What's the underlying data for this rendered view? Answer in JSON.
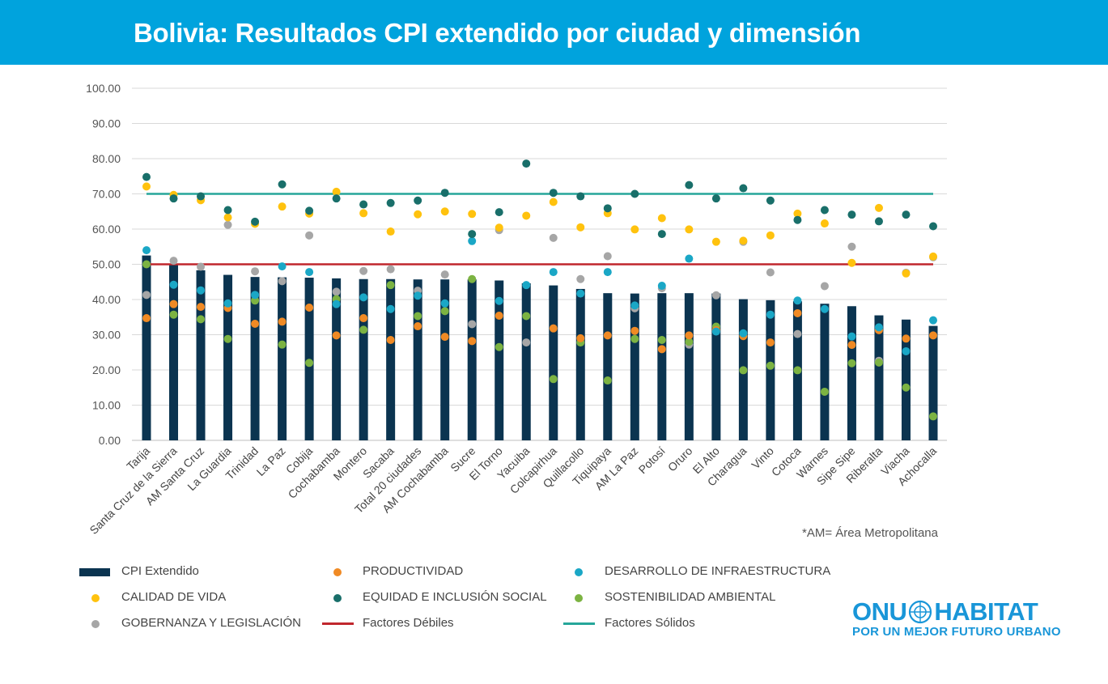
{
  "title": "Bolivia: Resultados CPI extendido por ciudad y dimensión",
  "note": "*AM= Área Metropolitana",
  "logo": {
    "main_left": "ONU",
    "main_right": "HABITAT",
    "tagline": "POR UN MEJOR FUTURO URBANO"
  },
  "colors": {
    "header": "#00a3dd",
    "bar": "#0b3450",
    "productividad": "#f08a24",
    "infraestructura": "#1aa7c6",
    "calidad": "#ffc20e",
    "equidad": "#196f6a",
    "sostenibilidad": "#7cb342",
    "gobernanza": "#a6a6a6",
    "debiles": "#c0272d",
    "solidos": "#26a69a"
  },
  "legend": {
    "cpi": "CPI Extendido",
    "productividad": "PRODUCTIVIDAD",
    "infraestructura": "DESARROLLO DE INFRAESTRUCTURA",
    "calidad": "CALIDAD DE VIDA",
    "equidad": "EQUIDAD E INCLUSIÓN SOCIAL",
    "sostenibilidad": "SOSTENIBILIDAD AMBIENTAL",
    "gobernanza": "GOBERNANZA Y LEGISLACIÓN",
    "debiles": "Factores Débiles",
    "solidos": "Factores Sólidos"
  },
  "chart_data": {
    "type": "bar",
    "ylim": [
      0,
      100
    ],
    "yticks": [
      "0.00",
      "10.00",
      "20.00",
      "30.00",
      "40.00",
      "50.00",
      "60.00",
      "70.00",
      "80.00",
      "90.00",
      "100.00"
    ],
    "grid": true,
    "categories": [
      "Tarija",
      "Santa Cruz de la Sierra",
      "AM Santa Cruz",
      "La Guardia",
      "Trinidad",
      "La Paz",
      "Cobija",
      "Cochabamba",
      "Montero",
      "Sacaba",
      "Total 20 ciudades",
      "AM Cochabamba",
      "Sucre",
      "El Torno",
      "Yacuiba",
      "Colcapirhua",
      "Quillacollo",
      "Tiquipaya",
      "AM La Paz",
      "Potosí",
      "Oruro",
      "El Alto",
      "Charagua",
      "Vinto",
      "Cotoca",
      "Warnes",
      "Sipe Sipe",
      "Riberalta",
      "Viacha",
      "Achocalla"
    ],
    "bars": {
      "name": "CPI Extendido",
      "values": [
        52.5,
        50.0,
        48.3,
        47.0,
        46.4,
        46.3,
        46.2,
        46.0,
        45.8,
        45.8,
        45.7,
        45.7,
        45.7,
        45.4,
        44.6,
        44.0,
        43.0,
        41.8,
        41.7,
        41.8,
        41.8,
        41.7,
        40.1,
        39.8,
        39.5,
        38.8,
        38.1,
        35.5,
        34.3,
        32.5
      ]
    },
    "series": [
      {
        "name": "PRODUCTIVIDAD",
        "color_key": "productividad",
        "values": [
          34.7,
          38.7,
          37.9,
          37.6,
          33.1,
          33.7,
          37.7,
          29.8,
          34.7,
          28.5,
          32.4,
          29.4,
          28.2,
          35.4,
          null,
          31.8,
          29.0,
          29.8,
          31.1,
          25.9,
          29.8,
          31.3,
          29.6,
          27.8,
          36.1,
          null,
          27.1,
          31.3,
          28.9,
          29.8
        ]
      },
      {
        "name": "DESARROLLO DE INFRAESTRUCTURA",
        "color_key": "infraestructura",
        "values": [
          54.0,
          44.2,
          42.6,
          38.9,
          41.3,
          49.4,
          47.8,
          38.7,
          40.6,
          37.3,
          41.1,
          38.9,
          56.6,
          39.6,
          44.1,
          47.8,
          41.7,
          47.8,
          38.3,
          43.9,
          51.6,
          30.9,
          30.4,
          35.7,
          39.7,
          37.3,
          29.5,
          32.1,
          25.3,
          34.1
        ]
      },
      {
        "name": "CALIDAD DE VIDA",
        "color_key": "calidad",
        "values": [
          72.1,
          69.7,
          68.2,
          63.3,
          61.5,
          66.4,
          64.4,
          70.6,
          64.5,
          59.3,
          64.2,
          65.0,
          64.3,
          60.4,
          63.8,
          67.7,
          60.5,
          64.5,
          59.9,
          63.1,
          59.9,
          56.4,
          56.7,
          58.2,
          64.4,
          61.6,
          50.4,
          66.0,
          47.4,
          52.2
        ]
      },
      {
        "name": "EQUIDAD E INCLUSIÓN SOCIAL",
        "color_key": "equidad",
        "values": [
          74.8,
          68.7,
          69.3,
          65.4,
          62.1,
          72.7,
          65.2,
          68.7,
          67.0,
          67.4,
          68.1,
          70.3,
          58.6,
          64.8,
          78.6,
          70.3,
          69.3,
          65.9,
          70.0,
          58.6,
          72.5,
          68.7,
          71.6,
          68.1,
          62.6,
          65.4,
          64.1,
          62.2,
          64.1,
          60.8
        ]
      },
      {
        "name": "SOSTENIBILIDAD AMBIENTAL",
        "color_key": "sostenibilidad",
        "values": [
          50.0,
          35.7,
          34.4,
          28.8,
          39.7,
          27.2,
          22.0,
          40.1,
          31.4,
          44.1,
          35.3,
          36.7,
          45.8,
          26.5,
          35.3,
          17.4,
          27.8,
          17.0,
          28.8,
          28.5,
          28.0,
          32.3,
          19.9,
          21.2,
          19.9,
          13.8,
          21.9,
          22.1,
          15.0,
          6.8
        ]
      },
      {
        "name": "GOBERNANZA Y LEGISLACIÓN",
        "color_key": "gobernanza",
        "values": [
          41.3,
          51.0,
          49.3,
          61.2,
          48.0,
          45.2,
          58.2,
          42.2,
          48.1,
          48.6,
          42.5,
          47.1,
          33.0,
          59.7,
          27.8,
          57.5,
          45.8,
          52.3,
          37.5,
          43.2,
          27.2,
          41.2,
          56.4,
          47.7,
          30.2,
          43.8,
          55.0,
          22.6,
          47.6,
          52.0
        ]
      }
    ],
    "reference_lines": [
      {
        "name": "Factores Débiles",
        "value": 50,
        "color_key": "debiles"
      },
      {
        "name": "Factores Sólidos",
        "value": 70,
        "color_key": "solidos"
      }
    ]
  }
}
